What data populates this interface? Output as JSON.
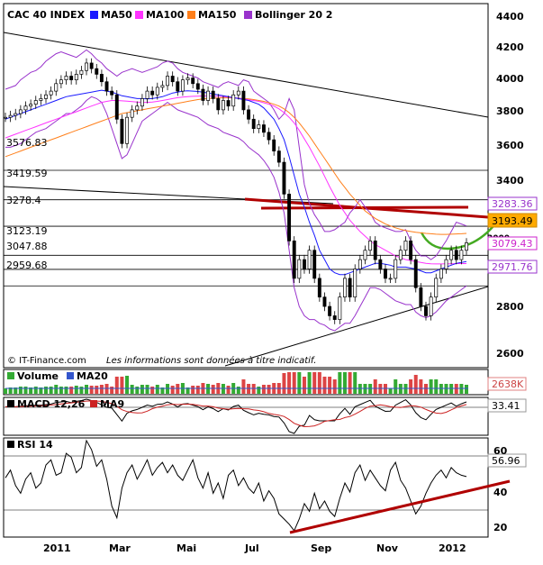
{
  "chart_data": [
    {
      "type": "candlestick",
      "title": "CAC 40 INDEX",
      "legend": [
        {
          "label": "MA50",
          "color": "#1a1aff"
        },
        {
          "label": "MA100",
          "color": "#ff33ff"
        },
        {
          "label": "MA150",
          "color": "#ff7f1a"
        },
        {
          "label": "Bollinger 20 2",
          "color": "#9933cc"
        }
      ],
      "y_ticks": [
        "4400",
        "4200",
        "4000",
        "3800",
        "3600",
        "3400",
        "2800",
        "2600"
      ],
      "ylim": [
        2600,
        4400
      ],
      "x_ticks": [
        "2011",
        "Mar",
        "Mai",
        "Jul",
        "Sep",
        "Nov",
        "2012"
      ],
      "levels": [
        {
          "label": "3576.83",
          "value": 3576.83
        },
        {
          "label": "3419.59",
          "value": 3419.59
        },
        {
          "label": "3278.4",
          "value": 3278.4
        },
        {
          "label": "3123.19",
          "value": 3123.19
        },
        {
          "label": "3047.88",
          "value": 3047.88
        },
        {
          "label": "2959.68",
          "value": 2959.68
        }
      ],
      "value_tags": [
        {
          "label": "3283.36",
          "color": "#9933cc",
          "bg": "#ffffff"
        },
        {
          "label": "3193.49",
          "color": "#000000",
          "bg": "#ffaa00"
        },
        {
          "label": "3079.43",
          "color": "#cc22cc",
          "bg": "#ffffff"
        },
        {
          "label": "2971.76",
          "color": "#9933cc",
          "bg": "#ffffff"
        }
      ],
      "cut_tick": "3000",
      "close_series": [
        3860,
        3870,
        3880,
        3900,
        3920,
        3930,
        3950,
        3960,
        3980,
        4000,
        4040,
        4060,
        4080,
        4060,
        4090,
        4110,
        4150,
        4120,
        4090,
        4050,
        4000,
        3980,
        3850,
        3720,
        3860,
        3900,
        3920,
        3960,
        4000,
        3980,
        4020,
        4030,
        4080,
        4050,
        4000,
        4060,
        4070,
        4040,
        4010,
        3950,
        4000,
        3960,
        3900,
        3950,
        3920,
        3980,
        4000,
        3900,
        3850,
        3800,
        3820,
        3780,
        3740,
        3680,
        3620,
        3450,
        3200,
        3000,
        3100,
        3050,
        3150,
        3000,
        2900,
        2850,
        2800,
        2780,
        2900,
        3000,
        2900,
        3050,
        3100,
        3150,
        3200,
        3100,
        3050,
        3000,
        3000,
        3100,
        3150,
        3200,
        3100,
        2950,
        2850,
        2800,
        2900,
        3000,
        3050,
        3100,
        3150,
        3100,
        3150,
        3190
      ],
      "bollinger_upper": [
        4010,
        4020,
        4030,
        4060,
        4080,
        4100,
        4110,
        4130,
        4160,
        4180,
        4200,
        4210,
        4200,
        4190,
        4180,
        4200,
        4220,
        4200,
        4170,
        4150,
        4120,
        4100,
        4080,
        4100,
        4110,
        4120,
        4110,
        4100,
        4110,
        4120,
        4130,
        4150,
        4160,
        4150,
        4120,
        4100,
        4090,
        4080,
        4070,
        4050,
        4040,
        4030,
        4020,
        4040,
        4050,
        4040,
        4030,
        4060,
        4050,
        4000,
        3980,
        3960,
        3940,
        3900,
        3850,
        3880,
        3960,
        3900,
        3700,
        3500,
        3400,
        3340,
        3300,
        3250,
        3250,
        3260,
        3280,
        3300,
        3350,
        3380,
        3420,
        3380,
        3350,
        3300,
        3280,
        3270,
        3260,
        3250,
        3250,
        3260,
        3200,
        3150,
        3120,
        3120,
        3100,
        3120,
        3160,
        3200,
        3250,
        3300,
        3290,
        3280
      ],
      "bollinger_lower": [
        3700,
        3700,
        3710,
        3720,
        3740,
        3760,
        3780,
        3790,
        3800,
        3820,
        3840,
        3860,
        3880,
        3880,
        3900,
        3920,
        3950,
        3970,
        3960,
        3940,
        3880,
        3800,
        3720,
        3640,
        3660,
        3720,
        3780,
        3840,
        3860,
        3880,
        3900,
        3920,
        3940,
        3920,
        3900,
        3890,
        3880,
        3870,
        3860,
        3840,
        3820,
        3810,
        3800,
        3780,
        3770,
        3760,
        3750,
        3730,
        3700,
        3680,
        3660,
        3630,
        3590,
        3540,
        3460,
        3350,
        3150,
        2950,
        2850,
        2800,
        2780,
        2780,
        2760,
        2750,
        2730,
        2720,
        2740,
        2760,
        2760,
        2800,
        2850,
        2900,
        2950,
        2950,
        2940,
        2920,
        2900,
        2880,
        2870,
        2860,
        2860,
        2820,
        2800,
        2790,
        2800,
        2820,
        2850,
        2880,
        2900,
        2920,
        2940,
        2960
      ],
      "ma50": [
        3850,
        3860,
        3870,
        3880,
        3890,
        3900,
        3910,
        3920,
        3930,
        3940,
        3950,
        3960,
        3970,
        3975,
        3980,
        3985,
        3990,
        3995,
        4000,
        4005,
        4000,
        3995,
        3985,
        3975,
        3970,
        3965,
        3960,
        3960,
        3958,
        3960,
        3965,
        3970,
        3980,
        3990,
        3995,
        4000,
        4002,
        4000,
        3998,
        3995,
        3990,
        3985,
        3980,
        3975,
        3970,
        3965,
        3960,
        3955,
        3950,
        3940,
        3930,
        3910,
        3880,
        3850,
        3800,
        3740,
        3650,
        3550,
        3450,
        3380,
        3300,
        3230,
        3150,
        3100,
        3050,
        3030,
        3020,
        3020,
        3030,
        3040,
        3050,
        3060,
        3070,
        3080,
        3080,
        3075,
        3070,
        3060,
        3060,
        3060,
        3055,
        3050,
        3040,
        3030,
        3030,
        3040,
        3050,
        3060,
        3070,
        3080,
        3085,
        3090
      ],
      "ma100": [
        3750,
        3760,
        3770,
        3780,
        3790,
        3800,
        3810,
        3820,
        3830,
        3840,
        3850,
        3860,
        3870,
        3880,
        3890,
        3900,
        3910,
        3920,
        3930,
        3940,
        3945,
        3950,
        3950,
        3948,
        3946,
        3944,
        3942,
        3940,
        3940,
        3942,
        3945,
        3950,
        3955,
        3960,
        3965,
        3968,
        3970,
        3972,
        3973,
        3974,
        3974,
        3973,
        3972,
        3970,
        3968,
        3965,
        3962,
        3958,
        3954,
        3950,
        3945,
        3938,
        3930,
        3920,
        3905,
        3885,
        3860,
        3830,
        3790,
        3745,
        3700,
        3650,
        3600,
        3545,
        3490,
        3440,
        3390,
        3350,
        3310,
        3280,
        3250,
        3225,
        3200,
        3180,
        3165,
        3150,
        3135,
        3120,
        3110,
        3100,
        3095,
        3090,
        3085,
        3080,
        3078,
        3077,
        3077,
        3078,
        3078,
        3079,
        3079,
        3079
      ],
      "ma150": [
        3650,
        3660,
        3670,
        3680,
        3690,
        3700,
        3710,
        3720,
        3730,
        3740,
        3750,
        3760,
        3770,
        3780,
        3790,
        3800,
        3810,
        3820,
        3830,
        3840,
        3850,
        3860,
        3870,
        3880,
        3885,
        3890,
        3895,
        3900,
        3905,
        3910,
        3915,
        3920,
        3925,
        3930,
        3935,
        3940,
        3945,
        3950,
        3955,
        3958,
        3960,
        3962,
        3963,
        3964,
        3964,
        3963,
        3962,
        3960,
        3958,
        3955,
        3950,
        3945,
        3938,
        3930,
        3920,
        3905,
        3885,
        3860,
        3830,
        3795,
        3760,
        3720,
        3680,
        3640,
        3600,
        3560,
        3520,
        3485,
        3450,
        3420,
        3390,
        3360,
        3340,
        3320,
        3305,
        3290,
        3280,
        3270,
        3262,
        3255,
        3250,
        3246,
        3243,
        3240,
        3238,
        3236,
        3235,
        3235,
        3236,
        3237,
        3238,
        3240
      ]
    },
    {
      "type": "bar",
      "title": "Volume",
      "legend": [
        {
          "label": "Volume",
          "color": "#33aa33"
        },
        {
          "label": "MA20",
          "color": "#3355cc"
        }
      ],
      "value_tag": "2638K"
    },
    {
      "type": "line",
      "title": "MACD 12,26",
      "legend": [
        {
          "label": "MACD 12,26",
          "color": "#000000"
        },
        {
          "label": "MA9",
          "color": "#cc2222"
        }
      ],
      "value_tag": "33.41"
    },
    {
      "type": "line",
      "title": "RSI 14",
      "y_ticks": [
        "60",
        "40",
        "20"
      ],
      "value_tag": "56.96",
      "values": [
        56,
        62,
        50,
        44,
        55,
        60,
        48,
        52,
        66,
        70,
        58,
        60,
        75,
        72,
        60,
        64,
        85,
        78,
        65,
        70,
        55,
        34,
        25,
        48,
        60,
        66,
        55,
        62,
        70,
        58,
        64,
        68,
        60,
        66,
        58,
        54,
        62,
        70,
        56,
        48,
        60,
        44,
        52,
        40,
        58,
        62,
        50,
        56,
        48,
        44,
        52,
        38,
        46,
        40,
        28,
        24,
        20,
        15,
        24,
        36,
        30,
        44,
        32,
        38,
        30,
        26,
        40,
        52,
        45,
        60,
        66,
        54,
        62,
        56,
        50,
        46,
        62,
        68,
        54,
        48,
        38,
        28,
        34,
        44,
        52,
        58,
        62,
        56,
        64,
        60,
        58,
        57
      ]
    }
  ],
  "footer": {
    "copyright": "© IT-Finance.com",
    "disclaimer": "Les informations sont données à titre indicatif."
  }
}
